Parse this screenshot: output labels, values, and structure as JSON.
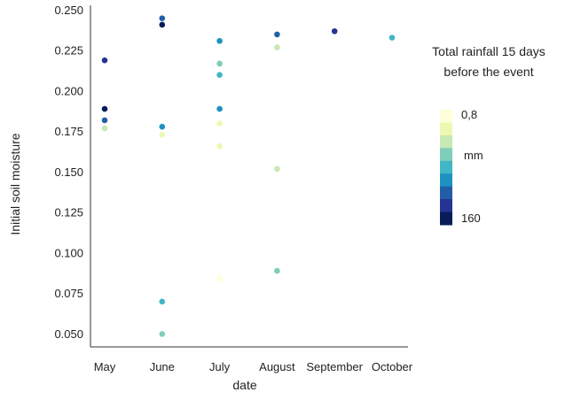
{
  "chart_data": {
    "type": "scatter",
    "title": "",
    "xlabel": "date",
    "ylabel": "Initial soil moisture",
    "categories": [
      "May",
      "June",
      "July",
      "August",
      "September",
      "October"
    ],
    "ylim": [
      0.042,
      0.253
    ],
    "yticks": [
      "0.050",
      "0.075",
      "0.100",
      "0.125",
      "0.150",
      "0.175",
      "0.200",
      "0.225",
      "0.250"
    ],
    "grid": false,
    "legend": {
      "title_lines": [
        "Total rainfall 15 days",
        "before the event"
      ],
      "min_label": "0,8",
      "unit_label": "mm",
      "max_label": "160",
      "placement": "right",
      "colors": [
        "#ffffd9",
        "#edf8b1",
        "#c7e9b4",
        "#7fcdbb",
        "#41b6c4",
        "#1d91c0",
        "#225ea8",
        "#253494",
        "#081d58"
      ]
    },
    "points": [
      {
        "x": "May",
        "y": 0.219,
        "color": "#253494"
      },
      {
        "x": "May",
        "y": 0.189,
        "color": "#081d58"
      },
      {
        "x": "May",
        "y": 0.182,
        "color": "#225ea8"
      },
      {
        "x": "May",
        "y": 0.177,
        "color": "#c7e9b4"
      },
      {
        "x": "June",
        "y": 0.245,
        "color": "#225ea8"
      },
      {
        "x": "June",
        "y": 0.241,
        "color": "#081d58"
      },
      {
        "x": "June",
        "y": 0.178,
        "color": "#1d91c0"
      },
      {
        "x": "June",
        "y": 0.173,
        "color": "#edf8b1"
      },
      {
        "x": "June",
        "y": 0.07,
        "color": "#41b6c4"
      },
      {
        "x": "June",
        "y": 0.05,
        "color": "#7fcdbb"
      },
      {
        "x": "July",
        "y": 0.231,
        "color": "#1d91c0"
      },
      {
        "x": "July",
        "y": 0.217,
        "color": "#7fcdbb"
      },
      {
        "x": "July",
        "y": 0.21,
        "color": "#41b6c4"
      },
      {
        "x": "July",
        "y": 0.189,
        "color": "#1d91c0"
      },
      {
        "x": "July",
        "y": 0.18,
        "color": "#edf8b1"
      },
      {
        "x": "July",
        "y": 0.166,
        "color": "#edf8b1"
      },
      {
        "x": "July",
        "y": 0.084,
        "color": "#ffffd9"
      },
      {
        "x": "August",
        "y": 0.235,
        "color": "#225ea8"
      },
      {
        "x": "August",
        "y": 0.227,
        "color": "#c7e9b4"
      },
      {
        "x": "August",
        "y": 0.152,
        "color": "#c7e9b4"
      },
      {
        "x": "August",
        "y": 0.089,
        "color": "#7fcdbb"
      },
      {
        "x": "September",
        "y": 0.237,
        "color": "#253494"
      },
      {
        "x": "October",
        "y": 0.233,
        "color": "#41b6c4"
      }
    ]
  }
}
